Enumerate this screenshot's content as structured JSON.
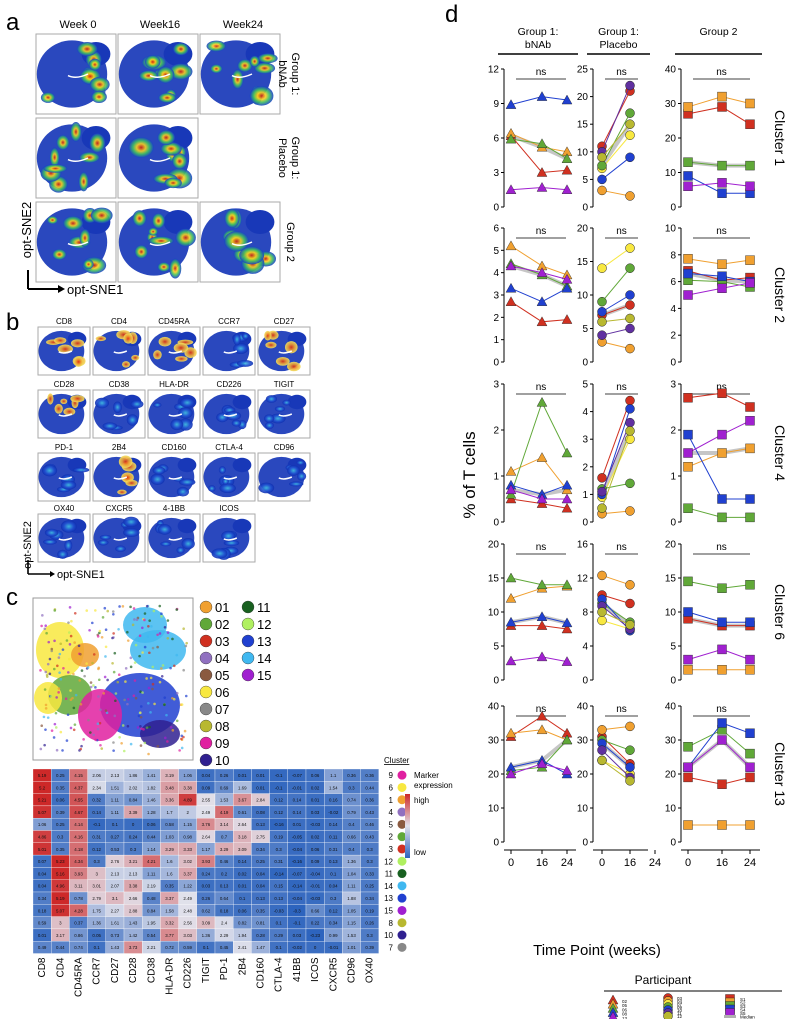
{
  "panel_labels": {
    "a": "a",
    "b": "b",
    "c": "c",
    "d": "d"
  },
  "panel_a": {
    "columns": [
      "Week 0",
      "Week16",
      "Week24"
    ],
    "rows": [
      "Group 1: bNAb",
      "Group 1: Placebo",
      "Group 2"
    ],
    "axis_y": "opt-SNE2",
    "axis_x": "opt-SNE1"
  },
  "panel_b": {
    "markers": [
      "CD8",
      "CD4",
      "CD45RA",
      "CCR7",
      "CD27",
      "CD28",
      "CD38",
      "HLA-DR",
      "CD226",
      "TIGIT",
      "PD-1",
      "2B4",
      "CD160",
      "CTLA-4",
      "CD96",
      "OX40",
      "CXCR5",
      "4-1BB",
      "ICOS"
    ],
    "axis_y": "opt-SNE2",
    "axis_x": "opt-SNE1"
  },
  "panel_c": {
    "clusters": [
      "01",
      "02",
      "03",
      "04",
      "05",
      "06",
      "07",
      "08",
      "09",
      "10",
      "11",
      "12",
      "13",
      "14",
      "15"
    ],
    "cluster_colors": [
      "#f0a030",
      "#60a838",
      "#d03020",
      "#9070c0",
      "#8a5a40",
      "#f8e840",
      "#888888",
      "#b8b830",
      "#e020a0",
      "#302090",
      "#186020",
      "#b0f060",
      "#2040d0",
      "#40b8f0",
      "#a020d0"
    ],
    "heatmap_cols": [
      "CD8",
      "CD4",
      "CD45RA",
      "CCR7",
      "CD27",
      "CD28",
      "CD38",
      "HLA-DR",
      "CD226",
      "TIGIT",
      "PD-1",
      "2B4",
      "CD160",
      "CTLA-4",
      "41BB",
      "ICOS",
      "CXCR5",
      "CD96",
      "OX40"
    ],
    "heatmap_rows": [
      "9",
      "6",
      "1",
      "4",
      "5",
      "2",
      "3",
      "12",
      "11",
      "14",
      "13",
      "15",
      "8",
      "10",
      "7"
    ],
    "heatmap_header": "Cluster",
    "scale_title": "Marker expression",
    "scale_high": "high",
    "scale_low": "low",
    "cells": [
      [
        5.19,
        0.25,
        4.15,
        2.06,
        2.13,
        1.86,
        1.41,
        3.19,
        1.06,
        0.04,
        0.26,
        0.01,
        0.01,
        -0.1,
        -0.07,
        0.06,
        1.1,
        0.36,
        0.36
      ],
      [
        5.2,
        0.35,
        4.37,
        2.34,
        1.51,
        2.02,
        1.82,
        3.48,
        3.38,
        0.09,
        0.69,
        1.69,
        0.01,
        -0.1,
        -0.01,
        0.02,
        1.54,
        0.3,
        0.44
      ],
      [
        5.21,
        0.06,
        4.55,
        0.32,
        1.11,
        0.84,
        1.46,
        3.36,
        4.89,
        2.55,
        1.53,
        3.67,
        2.84,
        0.12,
        0.14,
        0.01,
        0.16,
        0.74,
        0.36
      ],
      [
        5.07,
        0.39,
        4.67,
        0.14,
        1.11,
        3.39,
        1.28,
        1.7,
        2.0,
        2.49,
        4.19,
        0.61,
        0.08,
        0.12,
        0.14,
        0.03,
        -0.02,
        0.79,
        0.43
      ],
      [
        1.06,
        0.25,
        4.14,
        -0.1,
        0.1,
        0.0,
        0.06,
        0.58,
        1.15,
        3.76,
        3.14,
        2.64,
        0.13,
        -0.16,
        0.01,
        -0.03,
        0.14,
        0.4,
        0.46
      ],
      [
        4.86,
        0.3,
        4.16,
        0.31,
        0.27,
        0.24,
        0.44,
        1.03,
        0.98,
        2.64,
        0.7,
        3.18,
        2.75,
        0.19,
        -0.05,
        0.02,
        0.11,
        0.66,
        0.43
      ],
      [
        5.01,
        0.35,
        4.18,
        0.12,
        0.53,
        0.3,
        1.14,
        3.29,
        3.33,
        1.17,
        3.29,
        3.09,
        0.34,
        0.3,
        -0.04,
        0.06,
        0.31,
        0.4,
        0.3
      ],
      [
        0.07,
        5.23,
        4.34,
        0.3,
        2.76,
        3.21,
        4.21,
        1.6,
        3.02,
        3.93,
        0.46,
        0.14,
        0.25,
        0.31,
        -0.16,
        0.09,
        0.13,
        1.36,
        0.3
      ],
      [
        0.04,
        5.16,
        3.93,
        3.0,
        2.13,
        2.13,
        1.11,
        1.6,
        3.37,
        0.24,
        0.2,
        0.02,
        0.04,
        -0.14,
        -0.07,
        -0.04,
        0.1,
        1.04,
        0.33
      ],
      [
        0.04,
        4.96,
        3.11,
        3.01,
        2.07,
        3.38,
        2.19,
        0.35,
        1.22,
        0.03,
        0.13,
        0.01,
        0.04,
        0.15,
        -0.14,
        -0.01,
        0.04,
        1.11,
        0.25
      ],
      [
        0.34,
        5.19,
        0.78,
        2.79,
        3.1,
        2.66,
        0.48,
        3.37,
        2.49,
        0.26,
        0.64,
        0.1,
        0.13,
        0.13,
        -0.04,
        -0.03,
        0.3,
        1.88,
        0.34
      ],
      [
        0.18,
        5.07,
        4.28,
        1.75,
        2.27,
        2.88,
        0.84,
        1.58,
        2.48,
        0.62,
        0.18,
        0.06,
        0.35,
        -0.03,
        -0.3,
        0.66,
        0.12,
        1.05,
        0.19
      ],
      [
        0.59,
        3.0,
        0.37,
        1.36,
        1.61,
        1.43,
        1.95,
        3.32,
        2.56,
        3.09,
        2.4,
        0.82,
        0.81,
        0.1,
        -0.1,
        0.22,
        0.34,
        1.15,
        0.26
      ],
      [
        0.01,
        3.17,
        0.86,
        0.05,
        0.73,
        1.42,
        0.54,
        3.77,
        3.03,
        1.36,
        2.29,
        1.94,
        0.28,
        0.29,
        0.03,
        -0.23,
        0.99,
        1.53,
        0.3
      ],
      [
        0.49,
        0.44,
        0.74,
        0.1,
        1.43,
        3.73,
        2.21,
        0.72,
        0.59,
        0.1,
        0.45,
        2.41,
        1.47,
        0.1,
        -0.02,
        0.0,
        -0.01,
        1.01,
        0.39
      ]
    ]
  },
  "panel_d": {
    "groups": [
      "Group 1: bNAb",
      "Group 1: Placebo",
      "Group 2"
    ],
    "group_lines": [
      [
        "Group 1:",
        "bNAb"
      ],
      [
        "Group 1:",
        "Placebo"
      ],
      [
        "Group 2",
        ""
      ]
    ],
    "clusters": [
      "Cluster 1",
      "Cluster 2",
      "Cluster 4",
      "Cluster 6",
      "Cluster 13"
    ],
    "ns_label": "ns",
    "ylabel": "% of T cells",
    "xlabel": "Time Point (weeks)",
    "xticks": [
      "0",
      "16",
      "24"
    ],
    "legend_title": "Participant",
    "legend_col1": [
      [
        "02",
        "#d03020"
      ],
      [
        "05",
        "#f0a030"
      ],
      [
        "06",
        "#60a838"
      ],
      [
        "08",
        "#2040d0"
      ],
      [
        "13",
        "#a020d0"
      ]
    ],
    "legend_col2": [
      [
        "03",
        "#d03020"
      ],
      [
        "04",
        "#f0a030"
      ],
      [
        "07",
        "#f8e840"
      ],
      [
        "09",
        "#60a838"
      ],
      [
        "10",
        "#2040d0"
      ],
      [
        "11",
        "#6030a0"
      ],
      [
        "12",
        "#b8b830"
      ]
    ],
    "legend_col3": [
      [
        "S1",
        "#d03020"
      ],
      [
        "S2",
        "#f0a030"
      ],
      [
        "S3",
        "#60a838"
      ],
      [
        "S4",
        "#2040d0"
      ],
      [
        "S5",
        "#a020d0"
      ],
      [
        "Median",
        "#b0b0b0"
      ]
    ]
  },
  "chart_data": [
    {
      "type": "line",
      "title": "Cluster 1",
      "xticks": [
        0,
        16,
        24
      ],
      "ylim_bnab": [
        0,
        12
      ],
      "ylim_placebo": [
        0,
        25
      ],
      "ylim_group2": [
        0,
        40
      ],
      "bnab": [
        {
          "name": "02",
          "values": [
            6.2,
            3.0,
            3.2
          ]
        },
        {
          "name": "05",
          "values": [
            6.4,
            5.2,
            4.8
          ]
        },
        {
          "name": "06",
          "values": [
            5.9,
            5.5,
            4.2
          ]
        },
        {
          "name": "08",
          "values": [
            8.9,
            9.6,
            9.3
          ]
        },
        {
          "name": "13",
          "values": [
            1.5,
            1.7,
            1.5
          ]
        }
      ],
      "placebo": [
        {
          "name": "03",
          "values": [
            11,
            21
          ]
        },
        {
          "name": "04",
          "values": [
            3,
            2
          ]
        },
        {
          "name": "07",
          "values": [
            7,
            13
          ]
        },
        {
          "name": "09",
          "values": [
            7.5,
            17
          ]
        },
        {
          "name": "10",
          "values": [
            5,
            9
          ]
        },
        {
          "name": "11",
          "values": [
            10,
            22
          ]
        },
        {
          "name": "12",
          "values": [
            9,
            15
          ]
        }
      ],
      "group2": [
        {
          "name": "S1",
          "values": [
            27,
            29,
            24
          ]
        },
        {
          "name": "S2",
          "values": [
            29,
            32,
            30
          ]
        },
        {
          "name": "S3",
          "values": [
            13,
            12,
            12
          ]
        },
        {
          "name": "S4",
          "values": [
            9,
            4,
            4
          ]
        },
        {
          "name": "S5",
          "values": [
            6,
            7,
            6
          ]
        }
      ]
    },
    {
      "type": "line",
      "title": "Cluster 2",
      "xticks": [
        0,
        16,
        24
      ],
      "ylim_bnab": [
        0,
        6
      ],
      "ylim_placebo": [
        0,
        20
      ],
      "ylim_group2": [
        0,
        10
      ],
      "bnab": [
        {
          "name": "02",
          "values": [
            2.7,
            1.8,
            1.9
          ]
        },
        {
          "name": "05",
          "values": [
            5.2,
            4.3,
            3.9
          ]
        },
        {
          "name": "06",
          "values": [
            4.4,
            3.9,
            3.4
          ]
        },
        {
          "name": "08",
          "values": [
            3.3,
            2.7,
            3.3
          ]
        },
        {
          "name": "13",
          "values": [
            4.3,
            4.0,
            3.7
          ]
        }
      ],
      "placebo": [
        {
          "name": "03",
          "values": [
            7,
            8.5
          ]
        },
        {
          "name": "04",
          "values": [
            3,
            2
          ]
        },
        {
          "name": "07",
          "values": [
            14,
            17
          ]
        },
        {
          "name": "09",
          "values": [
            9,
            14
          ]
        },
        {
          "name": "10",
          "values": [
            7.5,
            10
          ]
        },
        {
          "name": "11",
          "values": [
            4,
            5
          ]
        },
        {
          "name": "12",
          "values": [
            6,
            6.5
          ]
        }
      ],
      "group2": [
        {
          "name": "S1",
          "values": [
            6.8,
            6.1,
            6.3
          ]
        },
        {
          "name": "S2",
          "values": [
            7.7,
            7.3,
            7.6
          ]
        },
        {
          "name": "S3",
          "values": [
            6.1,
            6.0,
            5.6
          ]
        },
        {
          "name": "S4",
          "values": [
            6.6,
            6.4,
            6.0
          ]
        },
        {
          "name": "S5",
          "values": [
            5.0,
            5.5,
            5.9
          ]
        }
      ]
    },
    {
      "type": "line",
      "title": "Cluster 4",
      "xticks": [
        0,
        16,
        24
      ],
      "ylim_bnab": [
        0,
        3
      ],
      "ylim_placebo": [
        0,
        5
      ],
      "ylim_group2": [
        0,
        3
      ],
      "bnab": [
        {
          "name": "02",
          "values": [
            0.5,
            0.4,
            0.3
          ]
        },
        {
          "name": "05",
          "values": [
            1.1,
            1.4,
            0.7
          ]
        },
        {
          "name": "06",
          "values": [
            0.6,
            2.6,
            1.5
          ]
        },
        {
          "name": "08",
          "values": [
            0.8,
            0.6,
            0.8
          ]
        },
        {
          "name": "13",
          "values": [
            0.7,
            0.5,
            0.5
          ]
        }
      ],
      "placebo": [
        {
          "name": "03",
          "values": [
            1.6,
            4.4
          ]
        },
        {
          "name": "04",
          "values": [
            0.3,
            0.4
          ]
        },
        {
          "name": "07",
          "values": [
            0.9,
            3.0
          ]
        },
        {
          "name": "09",
          "values": [
            1.2,
            1.4
          ]
        },
        {
          "name": "10",
          "values": [
            1.0,
            4.1
          ]
        },
        {
          "name": "11",
          "values": [
            1.1,
            3.6
          ]
        },
        {
          "name": "12",
          "values": [
            0.5,
            3.3
          ]
        }
      ],
      "group2": [
        {
          "name": "S1",
          "values": [
            2.7,
            2.8,
            2.5
          ]
        },
        {
          "name": "S2",
          "values": [
            1.2,
            1.5,
            1.6
          ]
        },
        {
          "name": "S3",
          "values": [
            0.3,
            0.1,
            0.1
          ]
        },
        {
          "name": "S4",
          "values": [
            1.9,
            0.5,
            0.5
          ]
        },
        {
          "name": "S5",
          "values": [
            1.5,
            1.9,
            2.2
          ]
        }
      ]
    },
    {
      "type": "line",
      "title": "Cluster 6",
      "xticks": [
        0,
        16,
        24
      ],
      "ylim_bnab": [
        0,
        20
      ],
      "ylim_placebo": [
        0,
        16
      ],
      "ylim_group2": [
        0,
        20
      ],
      "bnab": [
        {
          "name": "02",
          "values": [
            8,
            8,
            7.5
          ]
        },
        {
          "name": "05",
          "values": [
            12,
            13.5,
            13.8
          ]
        },
        {
          "name": "06",
          "values": [
            15,
            14,
            14
          ]
        },
        {
          "name": "08",
          "values": [
            8.5,
            9.3,
            8.4
          ]
        },
        {
          "name": "13",
          "values": [
            2.8,
            3.4,
            2.7
          ]
        }
      ],
      "placebo": [
        {
          "name": "03",
          "values": [
            10,
            9
          ]
        },
        {
          "name": "04",
          "values": [
            12.3,
            11.2
          ]
        },
        {
          "name": "07",
          "values": [
            7,
            6
          ]
        },
        {
          "name": "09",
          "values": [
            9,
            6.8
          ]
        },
        {
          "name": "10",
          "values": [
            9.5,
            5.8
          ]
        },
        {
          "name": "11",
          "values": [
            8.7,
            6
          ]
        },
        {
          "name": "12",
          "values": [
            8,
            6.5
          ]
        }
      ],
      "group2": [
        {
          "name": "S1",
          "values": [
            9,
            8,
            8
          ]
        },
        {
          "name": "S2",
          "values": [
            1.5,
            1.5,
            1.5
          ]
        },
        {
          "name": "S3",
          "values": [
            14.5,
            13.5,
            14
          ]
        },
        {
          "name": "S4",
          "values": [
            10,
            8.5,
            8.5
          ]
        },
        {
          "name": "S5",
          "values": [
            3,
            4.5,
            3
          ]
        }
      ]
    },
    {
      "type": "line",
      "title": "Cluster 13",
      "xticks": [
        0,
        16,
        24
      ],
      "ylim_bnab": [
        0,
        40
      ],
      "ylim_placebo": [
        0,
        40
      ],
      "ylim_group2": [
        0,
        40
      ],
      "bnab": [
        {
          "name": "02",
          "values": [
            31,
            37,
            32
          ]
        },
        {
          "name": "05",
          "values": [
            32,
            33,
            30
          ]
        },
        {
          "name": "06",
          "values": [
            21,
            22,
            30
          ]
        },
        {
          "name": "08",
          "values": [
            22,
            24,
            20
          ]
        },
        {
          "name": "13",
          "values": [
            20,
            23,
            21
          ]
        }
      ],
      "placebo": [
        {
          "name": "03",
          "values": [
            31,
            23
          ]
        },
        {
          "name": "04",
          "values": [
            33,
            34
          ]
        },
        {
          "name": "07",
          "values": [
            24,
            20
          ]
        },
        {
          "name": "09",
          "values": [
            30,
            27
          ]
        },
        {
          "name": "10",
          "values": [
            29,
            22
          ]
        },
        {
          "name": "11",
          "values": [
            27,
            19
          ]
        },
        {
          "name": "12",
          "values": [
            24,
            18
          ]
        }
      ],
      "group2": [
        {
          "name": "S1",
          "values": [
            19,
            17,
            19
          ]
        },
        {
          "name": "S2",
          "values": [
            5,
            5,
            5
          ]
        },
        {
          "name": "S3",
          "values": [
            28,
            33,
            26
          ]
        },
        {
          "name": "S4",
          "values": [
            22,
            35,
            32
          ]
        },
        {
          "name": "S5",
          "values": [
            22,
            30,
            22
          ]
        }
      ]
    }
  ]
}
